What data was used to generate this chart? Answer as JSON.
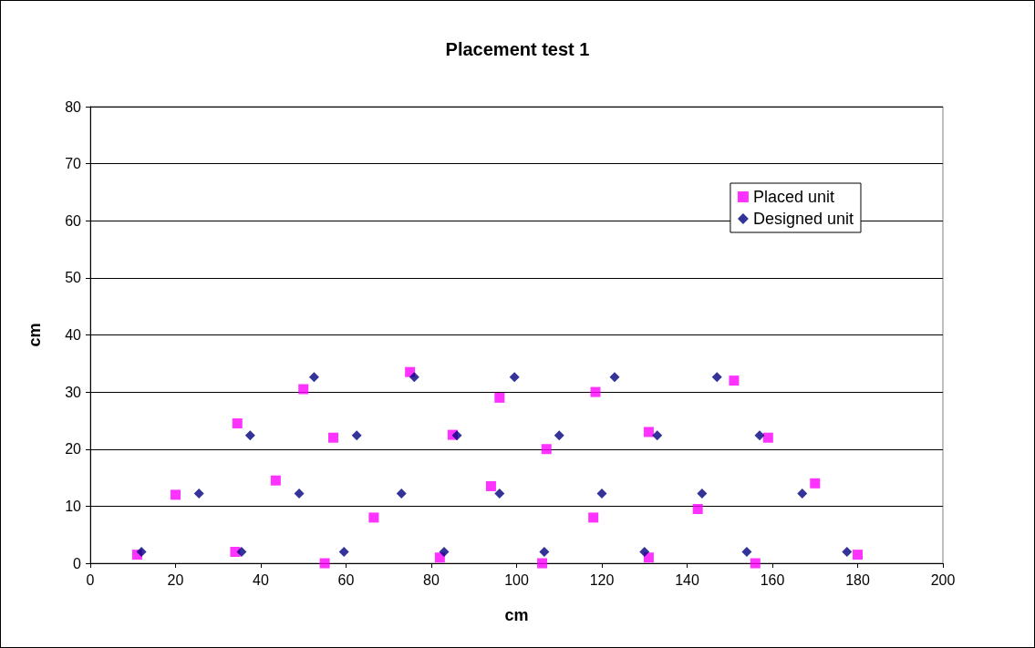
{
  "chart_data": {
    "type": "scatter",
    "title": "Placement test 1",
    "xlabel": "cm",
    "ylabel": "cm",
    "xlim": [
      0,
      200
    ],
    "xticks": [
      0,
      20,
      40,
      60,
      80,
      100,
      120,
      140,
      160,
      180,
      200
    ],
    "ylim": [
      0,
      80
    ],
    "yticks": [
      0,
      10,
      20,
      30,
      40,
      50,
      60,
      70,
      80
    ],
    "grid": "y",
    "legend": "top right",
    "series": [
      {
        "name": "Placed unit",
        "color": "#ff00ff",
        "marker": "square",
        "x": [
          11,
          20,
          34.5,
          34,
          43.5,
          50,
          55,
          57,
          66.5,
          75,
          82,
          85,
          94,
          96,
          106,
          107,
          118,
          118.5,
          131,
          131,
          142.5,
          151,
          156,
          159,
          170,
          180
        ],
        "values": [
          1.5,
          12,
          24.5,
          2,
          14.5,
          30.5,
          0,
          22,
          8,
          33.5,
          1,
          22.5,
          13.5,
          29,
          0,
          20,
          8,
          30,
          23,
          1,
          9.5,
          32,
          0,
          22,
          14,
          1.5
        ]
      },
      {
        "name": "Designed unit",
        "color": "#000080",
        "marker": "diamond",
        "x": [
          12,
          25.5,
          35.5,
          37.5,
          49,
          52.5,
          59.5,
          62.5,
          73,
          76,
          83,
          86,
          96,
          99.5,
          106.5,
          110,
          120,
          123,
          130,
          133,
          143.5,
          147,
          154,
          157,
          167,
          177.5
        ],
        "values": [
          2,
          12.2,
          2,
          22.4,
          12.2,
          32.6,
          2,
          22.4,
          12.2,
          32.6,
          2,
          22.4,
          12.2,
          32.6,
          2,
          22.4,
          12.2,
          32.6,
          2,
          22.4,
          12.2,
          32.6,
          2,
          22.4,
          12.2,
          2
        ]
      }
    ]
  }
}
